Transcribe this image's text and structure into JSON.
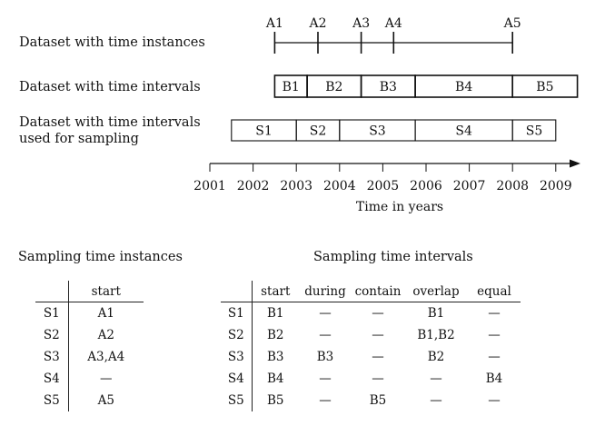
{
  "rows": {
    "instances_label": "Dataset with time instances",
    "intervals_label": "Dataset with time intervals",
    "sampling_label_line1": "Dataset with time intervals",
    "sampling_label_line2": "used for sampling"
  },
  "instances": [
    {
      "label": "A1",
      "time": 2002.5
    },
    {
      "label": "A2",
      "time": 2003.5
    },
    {
      "label": "A3",
      "time": 2004.5
    },
    {
      "label": "A4",
      "time": 2005.25
    },
    {
      "label": "A5",
      "time": 2008.0
    }
  ],
  "intervals": [
    {
      "label": "B1",
      "start": 2002.5,
      "end": 2003.25
    },
    {
      "label": "B2",
      "start": 2003.25,
      "end": 2004.5
    },
    {
      "label": "B3",
      "start": 2004.5,
      "end": 2005.75
    },
    {
      "label": "B4",
      "start": 2005.75,
      "end": 2008.0
    },
    {
      "label": "B5",
      "start": 2008.0,
      "end": 2009.5
    }
  ],
  "sampling": [
    {
      "label": "S1",
      "start": 2001.5,
      "end": 2003.0
    },
    {
      "label": "S2",
      "start": 2003.0,
      "end": 2004.0
    },
    {
      "label": "S3",
      "start": 2004.0,
      "end": 2005.75
    },
    {
      "label": "S4",
      "start": 2005.75,
      "end": 2008.0
    },
    {
      "label": "S5",
      "start": 2008.0,
      "end": 2009.0
    }
  ],
  "axis": {
    "min": 2001,
    "max": 2009,
    "ticks": [
      "2001",
      "2002",
      "2003",
      "2004",
      "2005",
      "2006",
      "2007",
      "2008",
      "2009"
    ],
    "label": "Time in years"
  },
  "instances_table": {
    "title": "Sampling time instances",
    "header": [
      "",
      "start"
    ],
    "rows": [
      [
        "S1",
        "A1"
      ],
      [
        "S2",
        "A2"
      ],
      [
        "S3",
        "A3,A4"
      ],
      [
        "S4",
        "—"
      ],
      [
        "S5",
        "A5"
      ]
    ]
  },
  "intervals_table": {
    "title": "Sampling time intervals",
    "header": [
      "",
      "start",
      "during",
      "contain",
      "overlap",
      "equal"
    ],
    "rows": [
      [
        "S1",
        "B1",
        "—",
        "—",
        "B1",
        "—"
      ],
      [
        "S2",
        "B2",
        "—",
        "—",
        "B1,B2",
        "—"
      ],
      [
        "S3",
        "B3",
        "B3",
        "—",
        "B2",
        "—"
      ],
      [
        "S4",
        "B4",
        "—",
        "—",
        "—",
        "B4"
      ],
      [
        "S5",
        "B5",
        "—",
        "B5",
        "—",
        "—"
      ]
    ]
  }
}
